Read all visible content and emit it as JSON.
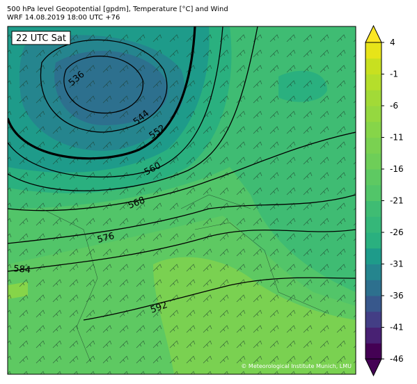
{
  "header": {
    "title_line1": "500 hPa level Geopotential [gpdm], Temperature [°C] and Wind",
    "title_line2": "WRF 14.08.2019 18:00 UTC +76"
  },
  "map": {
    "time_label": "22 UTC Sat",
    "contour_labels": [
      "536",
      "544",
      "552",
      "560",
      "568",
      "576",
      "584",
      "592"
    ],
    "credit": "© Meteorological Institute Munich, LMU"
  },
  "colorbar": {
    "ticks": [
      4,
      -1,
      -6,
      -11,
      -16,
      -21,
      -26,
      -31,
      -36,
      -41,
      -46
    ],
    "colors": [
      "#440154",
      "#482173",
      "#433e85",
      "#38588c",
      "#2d708e",
      "#25858e",
      "#1e9b8a",
      "#2ab07f",
      "#35b779",
      "#3fbc73",
      "#52c569",
      "#5ec962",
      "#6ece58",
      "#7ad151",
      "#86d549",
      "#95d840",
      "#a2da37",
      "#b5de2b",
      "#c8e020",
      "#e7e419"
    ],
    "under_color": "#440154",
    "over_color": "#fde725"
  }
}
